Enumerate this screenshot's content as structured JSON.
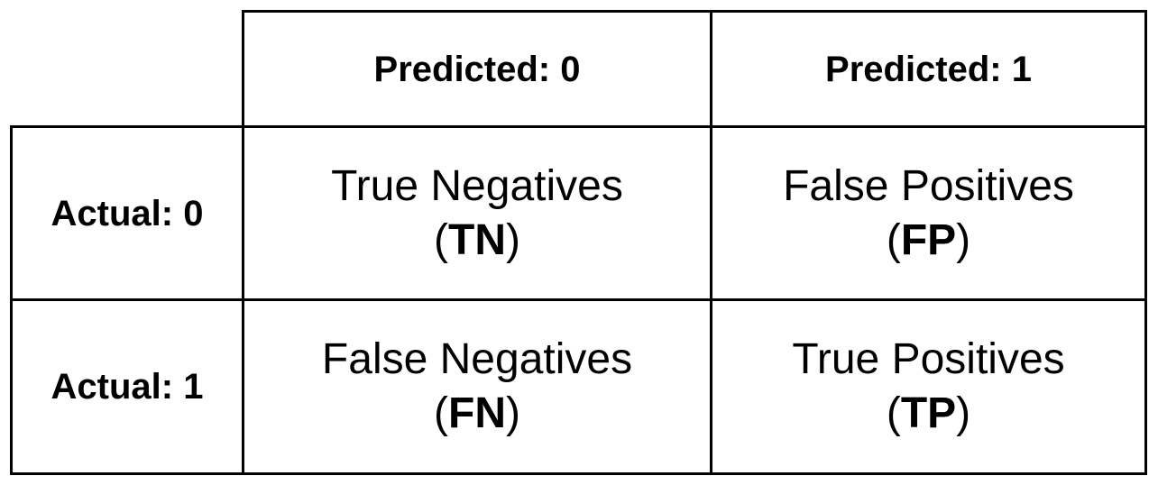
{
  "matrix": {
    "col_headers": [
      "Predicted: 0",
      "Predicted: 1"
    ],
    "row_headers": [
      "Actual: 0",
      "Actual: 1"
    ],
    "cells": [
      [
        {
          "label": "True Negatives",
          "abbr": "TN"
        },
        {
          "label": "False Positives",
          "abbr": "FP"
        }
      ],
      [
        {
          "label": "False Negatives",
          "abbr": "FN"
        },
        {
          "label": "True Positives",
          "abbr": "TP"
        }
      ]
    ]
  }
}
